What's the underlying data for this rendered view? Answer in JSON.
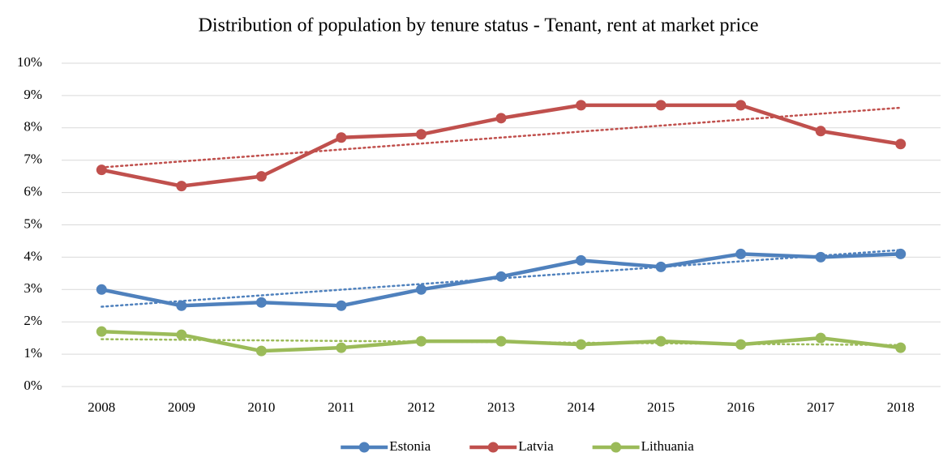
{
  "chart_data": {
    "type": "line",
    "title": "Distribution of population by tenure status - Tenant, rent at market price",
    "categories": [
      "2008",
      "2009",
      "2010",
      "2011",
      "2012",
      "2013",
      "2014",
      "2015",
      "2016",
      "2017",
      "2018"
    ],
    "series": [
      {
        "name": "Estonia",
        "color": "#4f81bd",
        "values": [
          3.0,
          2.5,
          2.6,
          2.5,
          3.0,
          3.4,
          3.9,
          3.7,
          4.1,
          4.0,
          4.1
        ]
      },
      {
        "name": "Latvia",
        "color": "#c0504d",
        "values": [
          6.7,
          6.2,
          6.5,
          7.7,
          7.8,
          8.3,
          8.7,
          8.7,
          8.7,
          7.9,
          7.5
        ]
      },
      {
        "name": "Lithuania",
        "color": "#9bbb59",
        "values": [
          1.7,
          1.6,
          1.1,
          1.2,
          1.4,
          1.4,
          1.3,
          1.4,
          1.3,
          1.5,
          1.2
        ]
      }
    ],
    "ylim": [
      0,
      10
    ],
    "yticks": [
      {
        "value": 0,
        "label": "0%"
      },
      {
        "value": 1,
        "label": "1%"
      },
      {
        "value": 2,
        "label": "2%"
      },
      {
        "value": 3,
        "label": "3%"
      },
      {
        "value": 4,
        "label": "4%"
      },
      {
        "value": 5,
        "label": "5%"
      },
      {
        "value": 6,
        "label": "6%"
      },
      {
        "value": 7,
        "label": "7%"
      },
      {
        "value": 8,
        "label": "8%"
      },
      {
        "value": 9,
        "label": "9%"
      },
      {
        "value": 10,
        "label": "10%"
      }
    ],
    "grid": true,
    "trendline": "linear",
    "legend": "bottom"
  }
}
